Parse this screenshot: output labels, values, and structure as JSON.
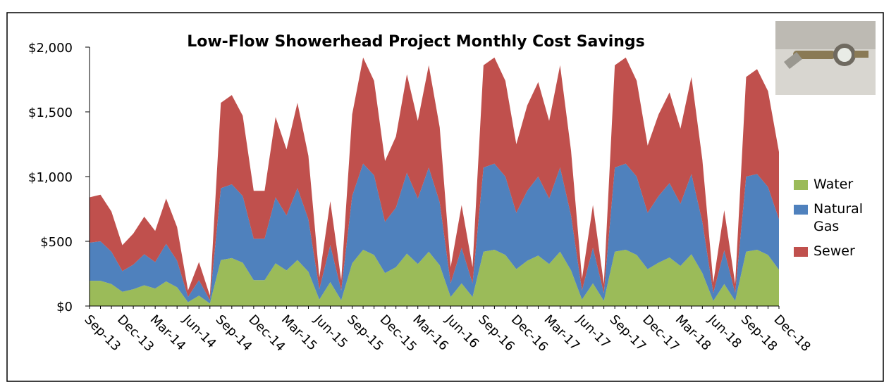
{
  "chart_data": {
    "type": "stacked-area",
    "title": "Low-Flow Showerhead Project Monthly Cost Savings",
    "categories": [
      "Sep-13",
      null,
      null,
      "Dec-13",
      null,
      null,
      "Mar-14",
      null,
      null,
      "Jun-14",
      null,
      null,
      "Sep-14",
      null,
      null,
      "Dec-14",
      null,
      null,
      "Mar-15",
      null,
      null,
      "Jun-15",
      null,
      null,
      "Sep-15",
      null,
      null,
      "Dec-15",
      null,
      null,
      "Mar-16",
      null,
      null,
      "Jun-16",
      null,
      null,
      "Sep-16",
      null,
      null,
      "Dec-16",
      null,
      null,
      "Mar-17",
      null,
      null,
      "Jun-17",
      null,
      null,
      "Sep-17",
      null,
      null,
      "Dec-17",
      null,
      null,
      "Mar-18",
      null,
      null,
      "Jun-18",
      null,
      null,
      "Sep-18",
      null,
      null,
      "Dec-18"
    ],
    "series": [
      {
        "name": "Water",
        "color": "#9bbb59",
        "values": [
          195,
          195,
          170,
          110,
          130,
          160,
          135,
          190,
          145,
          30,
          80,
          20,
          355,
          370,
          335,
          200,
          200,
          330,
          275,
          355,
          265,
          50,
          185,
          45,
          330,
          435,
          395,
          255,
          300,
          405,
          325,
          420,
          315,
          70,
          175,
          70,
          420,
          435,
          395,
          285,
          350,
          390,
          325,
          420,
          275,
          50,
          175,
          40,
          420,
          435,
          395,
          285,
          335,
          375,
          310,
          400,
          255,
          40,
          170,
          40,
          420,
          435,
          395,
          280
        ]
      },
      {
        "name": "Natural Gas",
        "color": "#4f81bd",
        "values": [
          295,
          305,
          250,
          160,
          190,
          240,
          205,
          290,
          205,
          40,
          120,
          25,
          555,
          570,
          515,
          320,
          320,
          510,
          425,
          555,
          405,
          80,
          285,
          75,
          520,
          665,
          615,
          395,
          460,
          625,
          505,
          650,
          485,
          105,
          275,
          105,
          650,
          665,
          605,
          435,
          540,
          610,
          505,
          650,
          425,
          70,
          275,
          60,
          650,
          665,
          605,
          435,
          515,
          575,
          480,
          620,
          395,
          60,
          260,
          60,
          580,
          585,
          525,
          390
        ]
      },
      {
        "name": "Sewer",
        "color": "#c0504d",
        "values": [
          350,
          360,
          310,
          200,
          240,
          290,
          240,
          350,
          260,
          50,
          140,
          35,
          660,
          690,
          620,
          370,
          370,
          620,
          510,
          660,
          490,
          90,
          340,
          80,
          630,
          820,
          730,
          470,
          550,
          760,
          600,
          790,
          580,
          125,
          330,
          125,
          790,
          820,
          740,
          530,
          660,
          730,
          600,
          790,
          500,
          90,
          330,
          70,
          790,
          820,
          740,
          520,
          630,
          700,
          580,
          750,
          480,
          80,
          310,
          70,
          770,
          810,
          740,
          520
        ]
      }
    ],
    "ylim": [
      0,
      2000
    ],
    "yticks": [
      {
        "value": 0,
        "label": "$0"
      },
      {
        "value": 500,
        "label": "$500"
      },
      {
        "value": 1000,
        "label": "$1,000"
      },
      {
        "value": 1500,
        "label": "$1,500"
      },
      {
        "value": 2000,
        "label": "$2,000"
      }
    ],
    "legend": "right"
  }
}
